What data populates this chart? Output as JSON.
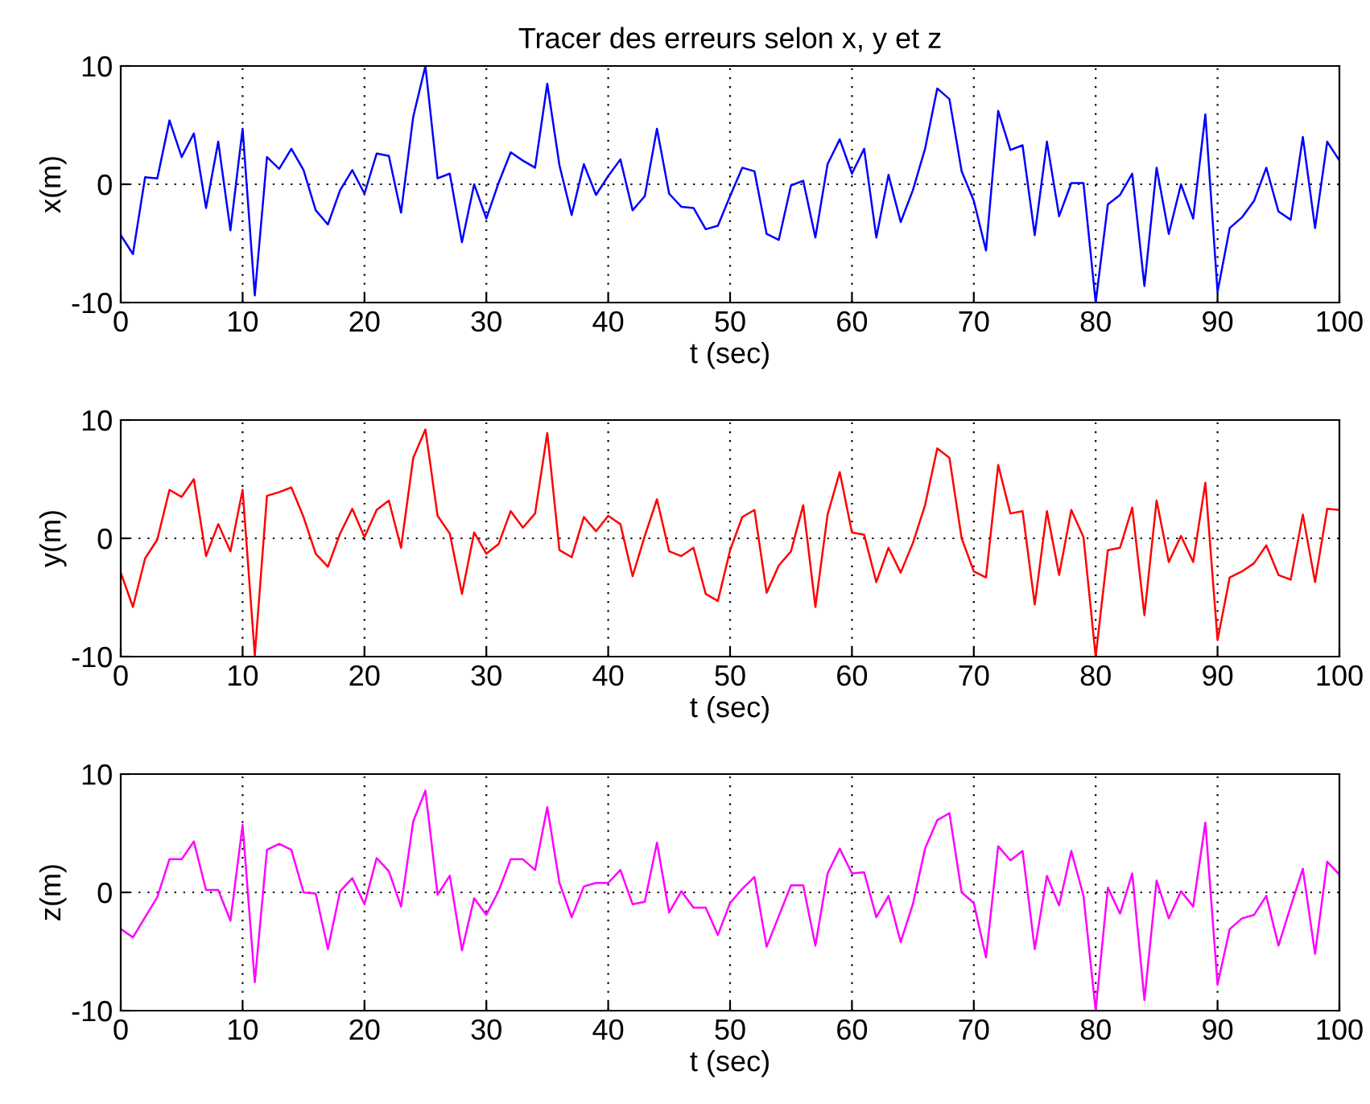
{
  "chart_data": [
    {
      "type": "line",
      "title": "Tracer des erreurs selon x, y et z",
      "xlabel": "t (sec)",
      "ylabel": "x(m)",
      "xlim": [
        0,
        100
      ],
      "ylim": [
        -10,
        10
      ],
      "xticks": [
        0,
        10,
        20,
        30,
        40,
        50,
        60,
        70,
        80,
        90,
        100
      ],
      "yticks": [
        -10,
        0,
        10
      ],
      "grid": true,
      "x": [
        0,
        1,
        2,
        3,
        4,
        5,
        6,
        7,
        8,
        9,
        10,
        11,
        12,
        13,
        14,
        15,
        16,
        17,
        18,
        19,
        20,
        21,
        22,
        23,
        24,
        25,
        26,
        27,
        28,
        29,
        30,
        31,
        32,
        33,
        34,
        35,
        36,
        37,
        38,
        39,
        40,
        41,
        42,
        43,
        44,
        45,
        46,
        47,
        48,
        49,
        50,
        51,
        52,
        53,
        54,
        55,
        56,
        57,
        58,
        59,
        60,
        61,
        62,
        63,
        64,
        65,
        66,
        67,
        68,
        69,
        70,
        71,
        72,
        73,
        74,
        75,
        76,
        77,
        78,
        79,
        80,
        81,
        82,
        83,
        84,
        85,
        86,
        87,
        88,
        89,
        90,
        91,
        92,
        93,
        94,
        95,
        96,
        97,
        98,
        99,
        100
      ],
      "series": [
        {
          "color": "#0000ff",
          "values": [
            -4.3,
            -5.9,
            0.6,
            0.5,
            5.4,
            2.3,
            4.3,
            -2.0,
            3.6,
            -3.9,
            4.7,
            -9.4,
            2.3,
            1.3,
            3.0,
            1.2,
            -2.2,
            -3.4,
            -0.5,
            1.2,
            -0.8,
            2.6,
            2.4,
            -2.4,
            5.7,
            10,
            0.5,
            0.9,
            -4.9,
            0,
            -2.9,
            0.1,
            2.7,
            2.0,
            1.4,
            8.5,
            1.6,
            -2.6,
            1.7,
            -0.9,
            0.7,
            2.1,
            -2.2,
            -1.0,
            4.7,
            -0.8,
            -1.9,
            -2.0,
            -3.8,
            -3.5,
            -1.0,
            1.4,
            1.1,
            -4.2,
            -4.7,
            -0.1,
            0.3,
            -4.5,
            1.7,
            3.8,
            0.9,
            3.0,
            -4.5,
            0.8,
            -3.2,
            -0.5,
            3.0,
            8.1,
            7.2,
            1.1,
            -1.4,
            -5.6,
            6.2,
            2.9,
            3.3,
            -4.3,
            3.6,
            -2.7,
            0.1,
            0.1,
            -10,
            -1.7,
            -0.9,
            0.9,
            -8.6,
            1.4,
            -4.2,
            0,
            -2.9,
            5.9,
            -9.1,
            -3.7,
            -2.8,
            -1.4,
            1.4,
            -2.3,
            -3.0,
            4.0,
            -3.7,
            3.6,
            2.0
          ]
        }
      ]
    },
    {
      "type": "line",
      "xlabel": "t (sec)",
      "ylabel": "y(m)",
      "xlim": [
        0,
        100
      ],
      "ylim": [
        -10,
        10
      ],
      "xticks": [
        0,
        10,
        20,
        30,
        40,
        50,
        60,
        70,
        80,
        90,
        100
      ],
      "yticks": [
        -10,
        0,
        10
      ],
      "grid": true,
      "x": [
        0,
        1,
        2,
        3,
        4,
        5,
        6,
        7,
        8,
        9,
        10,
        11,
        12,
        13,
        14,
        15,
        16,
        17,
        18,
        19,
        20,
        21,
        22,
        23,
        24,
        25,
        26,
        27,
        28,
        29,
        30,
        31,
        32,
        33,
        34,
        35,
        36,
        37,
        38,
        39,
        40,
        41,
        42,
        43,
        44,
        45,
        46,
        47,
        48,
        49,
        50,
        51,
        52,
        53,
        54,
        55,
        56,
        57,
        58,
        59,
        60,
        61,
        62,
        63,
        64,
        65,
        66,
        67,
        68,
        69,
        70,
        71,
        72,
        73,
        74,
        75,
        76,
        77,
        78,
        79,
        80,
        81,
        82,
        83,
        84,
        85,
        86,
        87,
        88,
        89,
        90,
        91,
        92,
        93,
        94,
        95,
        96,
        97,
        98,
        99,
        100
      ],
      "series": [
        {
          "color": "#ff0000",
          "values": [
            -2.9,
            -5.8,
            -1.7,
            -0.1,
            4.1,
            3.5,
            5.0,
            -1.5,
            1.2,
            -1.1,
            4.1,
            -9.9,
            3.6,
            3.9,
            4.3,
            1.8,
            -1.3,
            -2.4,
            0.4,
            2.5,
            0.1,
            2.4,
            3.2,
            -0.8,
            6.8,
            9.2,
            1.9,
            0.4,
            -4.7,
            0.5,
            -1.3,
            -0.5,
            2.3,
            0.9,
            2.1,
            8.9,
            -1.0,
            -1.6,
            1.8,
            0.6,
            1.9,
            1.2,
            -3.2,
            0.2,
            3.3,
            -1.1,
            -1.5,
            -0.8,
            -4.7,
            -5.3,
            -1.0,
            1.8,
            2.4,
            -4.6,
            -2.3,
            -1.1,
            2.8,
            -5.8,
            2.0,
            5.6,
            0.5,
            0.3,
            -3.7,
            -0.8,
            -2.9,
            -0.4,
            2.8,
            7.6,
            6.8,
            0,
            -2.8,
            -3.3,
            6.2,
            2.1,
            2.3,
            -5.6,
            2.3,
            -3.1,
            2.4,
            0.1,
            -10,
            -1.0,
            -0.8,
            2.6,
            -6.5,
            3.2,
            -2.0,
            0.2,
            -2.0,
            4.7,
            -8.6,
            -3.3,
            -2.8,
            -2.1,
            -0.6,
            -3.1,
            -3.5,
            2.0,
            -3.7,
            2.5,
            2.4
          ]
        }
      ]
    },
    {
      "type": "line",
      "xlabel": "t (sec)",
      "ylabel": "z(m)",
      "xlim": [
        0,
        100
      ],
      "ylim": [
        -10,
        10
      ],
      "xticks": [
        0,
        10,
        20,
        30,
        40,
        50,
        60,
        70,
        80,
        90,
        100
      ],
      "yticks": [
        -10,
        0,
        10
      ],
      "grid": true,
      "x": [
        0,
        1,
        2,
        3,
        4,
        5,
        6,
        7,
        8,
        9,
        10,
        11,
        12,
        13,
        14,
        15,
        16,
        17,
        18,
        19,
        20,
        21,
        22,
        23,
        24,
        25,
        26,
        27,
        28,
        29,
        30,
        31,
        32,
        33,
        34,
        35,
        36,
        37,
        38,
        39,
        40,
        41,
        42,
        43,
        44,
        45,
        46,
        47,
        48,
        49,
        50,
        51,
        52,
        53,
        54,
        55,
        56,
        57,
        58,
        59,
        60,
        61,
        62,
        63,
        64,
        65,
        66,
        67,
        68,
        69,
        70,
        71,
        72,
        73,
        74,
        75,
        76,
        77,
        78,
        79,
        80,
        81,
        82,
        83,
        84,
        85,
        86,
        87,
        88,
        89,
        90,
        91,
        92,
        93,
        94,
        95,
        96,
        97,
        98,
        99,
        100
      ],
      "series": [
        {
          "color": "#ff00ff",
          "values": [
            -3.1,
            -3.8,
            -2.1,
            -0.4,
            2.8,
            2.8,
            4.3,
            0.2,
            0.2,
            -2.4,
            5.7,
            -7.6,
            3.6,
            4.1,
            3.6,
            0,
            -0.1,
            -4.8,
            0.1,
            1.2,
            -1.0,
            2.9,
            1.8,
            -1.2,
            6.0,
            8.6,
            -0.2,
            1.4,
            -4.9,
            -0.5,
            -1.9,
            0.1,
            2.8,
            2.8,
            1.9,
            7.2,
            0.8,
            -2.1,
            0.5,
            0.8,
            0.8,
            1.9,
            -1.0,
            -0.8,
            4.2,
            -1.7,
            0.1,
            -1.3,
            -1.3,
            -3.6,
            -0.9,
            0.3,
            1.3,
            -4.6,
            -2.0,
            0.6,
            0.6,
            -4.5,
            1.6,
            3.7,
            1.6,
            1.7,
            -2.1,
            -0.3,
            -4.2,
            -1.0,
            3.7,
            6.1,
            6.7,
            0,
            -0.9,
            -5.5,
            3.9,
            2.7,
            3.5,
            -4.8,
            1.4,
            -1.1,
            3.5,
            -0.3,
            -10,
            0.4,
            -1.8,
            1.6,
            -9.1,
            1.0,
            -2.2,
            0.1,
            -1.2,
            5.9,
            -7.8,
            -3.1,
            -2.2,
            -1.9,
            -0.3,
            -4.5,
            -1.2,
            2.0,
            -5.2,
            2.6,
            1.5
          ]
        }
      ]
    }
  ]
}
